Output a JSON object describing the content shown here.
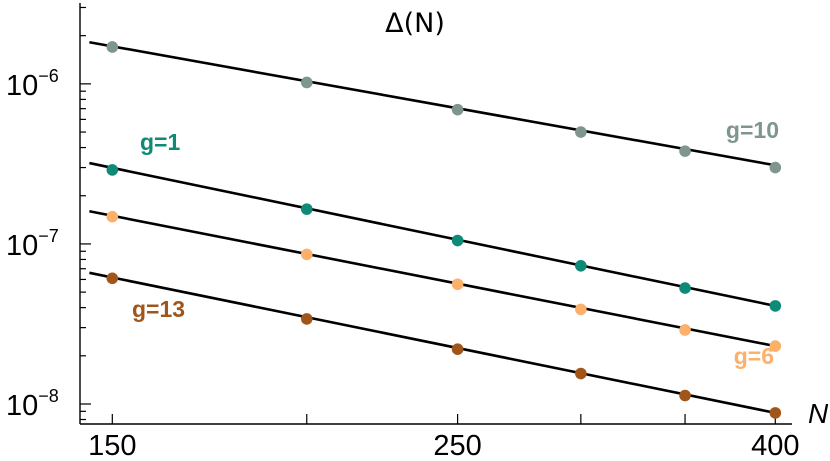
{
  "chart_data": {
    "type": "line",
    "title": "Δ(N)",
    "xlabel": "N",
    "ylabel": "",
    "x_scale": "log",
    "y_scale": "log",
    "xlim": [
      143,
      410
    ],
    "ylim": [
      7.5e-09,
      3.2e-06
    ],
    "x_ticks": [
      {
        "value": 150,
        "label": "150"
      },
      {
        "value": 200,
        "label": ""
      },
      {
        "value": 250,
        "label": "250"
      },
      {
        "value": 300,
        "label": ""
      },
      {
        "value": 350,
        "label": ""
      },
      {
        "value": 400,
        "label": "400"
      }
    ],
    "y_ticks": [
      {
        "value": 1e-06,
        "base": "10",
        "exp": "−6"
      },
      {
        "value": 1e-07,
        "base": "10",
        "exp": "−7"
      },
      {
        "value": 1e-08,
        "base": "10",
        "exp": "−8"
      }
    ],
    "grid": false,
    "legend": "none",
    "series": [
      {
        "name": "g=10",
        "color": "#7f9690",
        "x": [
          150,
          200,
          250,
          300,
          350,
          400
        ],
        "y": [
          1.7e-06,
          1.02e-06,
          6.9e-07,
          5e-07,
          3.8e-07,
          3e-07
        ],
        "fit": {
          "x": [
            145,
            400
          ],
          "y": [
            1.82e-06,
            3.1e-07
          ]
        }
      },
      {
        "name": "g=1",
        "color": "#0e8a76",
        "x": [
          150,
          200,
          250,
          300,
          350,
          400
        ],
        "y": [
          2.9e-07,
          1.65e-07,
          1.05e-07,
          7.3e-08,
          5.3e-08,
          4.1e-08
        ],
        "fit": {
          "x": [
            145,
            400
          ],
          "y": [
            3.2e-07,
            4.1e-08
          ]
        }
      },
      {
        "name": "g=6",
        "color": "#fdb06a",
        "x": [
          150,
          200,
          250,
          300,
          350,
          400
        ],
        "y": [
          1.48e-07,
          8.6e-08,
          5.6e-08,
          3.9e-08,
          2.9e-08,
          2.3e-08
        ],
        "fit": {
          "x": [
            145,
            400
          ],
          "y": [
            1.6e-07,
            2.3e-08
          ]
        }
      },
      {
        "name": "g=13",
        "color": "#a0561a",
        "x": [
          150,
          200,
          250,
          300,
          350,
          400
        ],
        "y": [
          6.1e-08,
          3.4e-08,
          2.2e-08,
          1.55e-08,
          1.13e-08,
          8.8e-09
        ],
        "fit": {
          "x": [
            145,
            400
          ],
          "y": [
            6.6e-08,
            8.8e-09
          ]
        }
      }
    ]
  }
}
